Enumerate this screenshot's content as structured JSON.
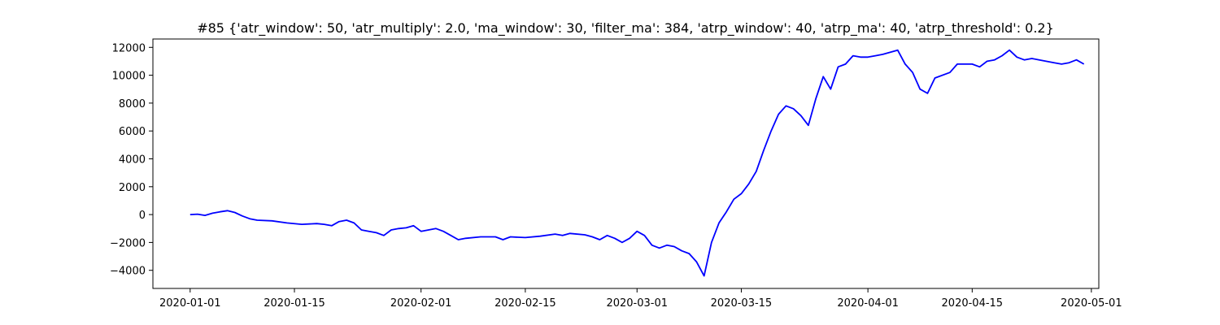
{
  "chart_data": {
    "type": "line",
    "title": "#85 {'atr_window': 50, 'atr_multiply': 2.0, 'ma_window': 30, 'filter_ma': 384, 'atrp_window': 40, 'atrp_ma': 40, 'atrp_threshold': 0.2}",
    "xlabel": "",
    "ylabel": "",
    "line_color": "#0000ff",
    "x_type": "date",
    "xlim": [
      "2019-12-27",
      "2020-05-02"
    ],
    "ylim": [
      -5300,
      12600
    ],
    "x_ticks": [
      "2020-01-01",
      "2020-01-15",
      "2020-02-01",
      "2020-02-15",
      "2020-03-01",
      "2020-03-15",
      "2020-04-01",
      "2020-04-15",
      "2020-05-01"
    ],
    "y_ticks": [
      -4000,
      -2000,
      0,
      2000,
      4000,
      6000,
      8000,
      10000,
      12000
    ],
    "y_tick_labels": [
      "−4000",
      "−2000",
      "0",
      "2000",
      "4000",
      "6000",
      "8000",
      "10000",
      "12000"
    ],
    "grid": false,
    "legend": "none",
    "series": [
      {
        "x": [
          "2020-01-01",
          "2020-01-02",
          "2020-01-03",
          "2020-01-04",
          "2020-01-05",
          "2020-01-06",
          "2020-01-07",
          "2020-01-08",
          "2020-01-09",
          "2020-01-10",
          "2020-01-12",
          "2020-01-14",
          "2020-01-16",
          "2020-01-18",
          "2020-01-19",
          "2020-01-20",
          "2020-01-21",
          "2020-01-22",
          "2020-01-23",
          "2020-01-24",
          "2020-01-25",
          "2020-01-26",
          "2020-01-27",
          "2020-01-28",
          "2020-01-29",
          "2020-01-30",
          "2020-01-31",
          "2020-02-01",
          "2020-02-03",
          "2020-02-04",
          "2020-02-05",
          "2020-02-06",
          "2020-02-07",
          "2020-02-09",
          "2020-02-11",
          "2020-02-12",
          "2020-02-13",
          "2020-02-15",
          "2020-02-17",
          "2020-02-19",
          "2020-02-20",
          "2020-02-21",
          "2020-02-23",
          "2020-02-24",
          "2020-02-25",
          "2020-02-26",
          "2020-02-27",
          "2020-02-28",
          "2020-02-29",
          "2020-03-01",
          "2020-03-02",
          "2020-03-03",
          "2020-03-04",
          "2020-03-05",
          "2020-03-06",
          "2020-03-07",
          "2020-03-08",
          "2020-03-09",
          "2020-03-10",
          "2020-03-11",
          "2020-03-12",
          "2020-03-13",
          "2020-03-14",
          "2020-03-15",
          "2020-03-16",
          "2020-03-17",
          "2020-03-18",
          "2020-03-19",
          "2020-03-20",
          "2020-03-21",
          "2020-03-22",
          "2020-03-23",
          "2020-03-24",
          "2020-03-25",
          "2020-03-26",
          "2020-03-27",
          "2020-03-28",
          "2020-03-29",
          "2020-03-30",
          "2020-03-31",
          "2020-04-01",
          "2020-04-02",
          "2020-04-03",
          "2020-04-05",
          "2020-04-06",
          "2020-04-07",
          "2020-04-08",
          "2020-04-09",
          "2020-04-10",
          "2020-04-12",
          "2020-04-13",
          "2020-04-14",
          "2020-04-15",
          "2020-04-16",
          "2020-04-17",
          "2020-04-18",
          "2020-04-19",
          "2020-04-20",
          "2020-04-21",
          "2020-04-22",
          "2020-04-23",
          "2020-04-24",
          "2020-04-26",
          "2020-04-27",
          "2020-04-28",
          "2020-04-29",
          "2020-04-30"
        ],
        "y": [
          0,
          30,
          -60,
          100,
          200,
          280,
          150,
          -100,
          -300,
          -400,
          -450,
          -600,
          -700,
          -650,
          -700,
          -800,
          -500,
          -400,
          -600,
          -1100,
          -1200,
          -1300,
          -1500,
          -1100,
          -1000,
          -950,
          -800,
          -1200,
          -1000,
          -1200,
          -1500,
          -1800,
          -1700,
          -1600,
          -1600,
          -1800,
          -1600,
          -1650,
          -1550,
          -1400,
          -1500,
          -1350,
          -1450,
          -1600,
          -1800,
          -1500,
          -1700,
          -2000,
          -1700,
          -1200,
          -1500,
          -2200,
          -2400,
          -2200,
          -2300,
          -2600,
          -2800,
          -3400,
          -4400,
          -2000,
          -600,
          200,
          1100,
          1500,
          2200,
          3100,
          4600,
          6000,
          7200,
          7800,
          7600,
          7100,
          6400,
          8300,
          9900,
          9000,
          10600,
          10800,
          11400,
          11300,
          11300,
          11400,
          11500,
          11800,
          10800,
          10200,
          9000,
          8700,
          9800,
          10200,
          10800,
          10800,
          10800,
          10600,
          11000,
          11100,
          11400,
          11800,
          11300,
          11100,
          11200,
          11100,
          10900,
          10800,
          10900,
          11100,
          10800
        ]
      }
    ]
  }
}
